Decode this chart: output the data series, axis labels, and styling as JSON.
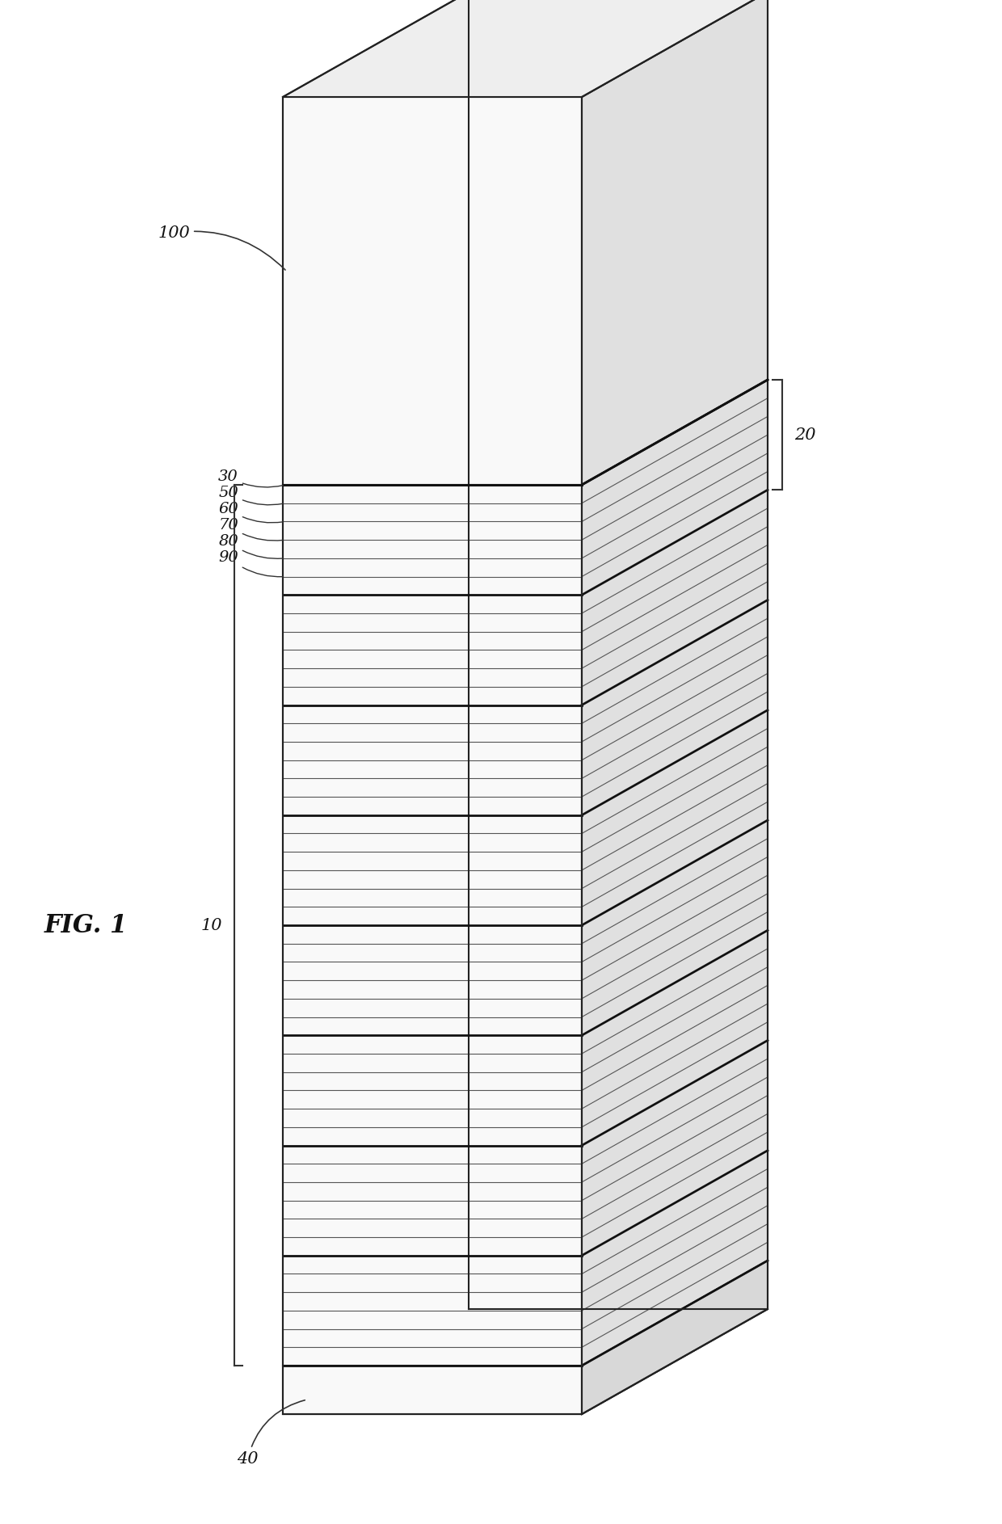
{
  "background_color": "#ffffff",
  "line_color": "#222222",
  "face_front_color": "#f9f9f9",
  "face_top_color": "#eeeeee",
  "face_right_color": "#e0e0e0",
  "face_slab_right": "#d8d8d8",
  "n_layer_groups": 8,
  "n_thin_lines_per_group": 5,
  "label_fontsize": 15,
  "fig_label_fontsize": 22,
  "labels": {
    "100": "100",
    "10": "10",
    "20": "20",
    "30": "30",
    "50": "50",
    "60": "60",
    "70": "70",
    "80": "80",
    "90": "90",
    "40": "40",
    "fig": "FIG. 1"
  }
}
